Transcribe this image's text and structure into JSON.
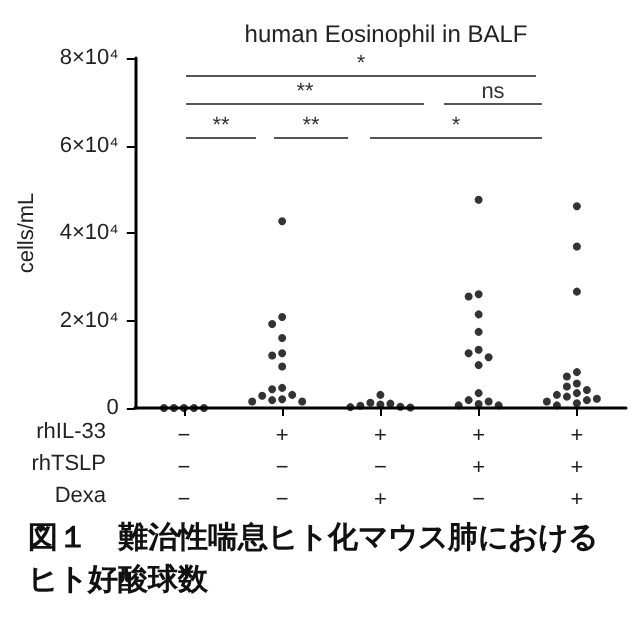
{
  "chart_data": {
    "type": "scatter",
    "title": "human Eosinophil in BALF",
    "ylabel": "cells/mL",
    "categories": [
      "−\n−\n−",
      "+\n−\n−",
      "+\n−\n+",
      "+\n+\n−",
      "+\n+\n+"
    ],
    "series": [
      {
        "color": "#000000",
        "x": [
          "−\n−\n−",
          "−\n−\n−",
          "−\n−\n−",
          "−\n−\n−",
          "−\n−\n−"
        ],
        "values": [
          0,
          0,
          0,
          0,
          0
        ]
      },
      {
        "color": "#000000",
        "x": [
          "+\n−\n−",
          "+\n−\n−",
          "+\n−\n−",
          "+\n−\n−",
          "+\n−\n−",
          "+\n−\n−",
          "+\n−\n−",
          "+\n−\n−",
          "+\n−\n−",
          "+\n−\n−",
          "+\n−\n−",
          "+\n−\n−",
          "+\n−\n−",
          "+\n−\n−",
          "+\n−\n−"
        ],
        "values": [
          42700,
          20800,
          19200,
          16000,
          12500,
          12000,
          9500,
          4600,
          4300,
          3000,
          2800,
          2000,
          1800,
          1500,
          1500
        ]
      },
      {
        "color": "#000000",
        "x": [
          "+\n−\n+",
          "+\n−\n+",
          "+\n−\n+",
          "+\n−\n+",
          "+\n−\n+",
          "+\n−\n+",
          "+\n−\n+",
          "+\n−\n+"
        ],
        "values": [
          3000,
          1200,
          1000,
          800,
          500,
          300,
          200,
          100
        ]
      },
      {
        "color": "#000000",
        "x": [
          "+\n+\n−",
          "+\n+\n−",
          "+\n+\n−",
          "+\n+\n−",
          "+\n+\n−",
          "+\n+\n−",
          "+\n+\n−",
          "+\n+\n−",
          "+\n+\n−",
          "+\n+\n−",
          "+\n+\n−",
          "+\n+\n−",
          "+\n+\n−",
          "+\n+\n−",
          "+\n+\n−"
        ],
        "values": [
          47600,
          26000,
          25500,
          21400,
          17400,
          13300,
          12500,
          11600,
          9800,
          3400,
          1800,
          1500,
          900,
          600,
          600
        ]
      },
      {
        "color": "#000000",
        "x": [
          "+\n+\n+",
          "+\n+\n+",
          "+\n+\n+",
          "+\n+\n+",
          "+\n+\n+",
          "+\n+\n+",
          "+\n+\n+",
          "+\n+\n+",
          "+\n+\n+",
          "+\n+\n+",
          "+\n+\n+",
          "+\n+\n+",
          "+\n+\n+",
          "+\n+\n+",
          "+\n+\n+",
          "+\n+\n+"
        ],
        "values": [
          46100,
          36900,
          26600,
          8200,
          7200,
          5600,
          4900,
          4100,
          3400,
          3000,
          2600,
          2100,
          1800,
          1500,
          1100,
          600
        ]
      }
    ],
    "ylim": [
      0,
      80000
    ],
    "yticks": [
      0,
      {
        "value": 20000,
        "label": "2×10⁴"
      },
      {
        "value": 40000,
        "label": "4×10⁴"
      },
      {
        "value": 60000,
        "label": "6×10⁴"
      },
      {
        "value": 80000,
        "label": "8×10⁴"
      }
    ],
    "marker": "circle",
    "grid": false,
    "annotations": [
      "*",
      "**",
      "ns",
      "**",
      "**",
      "*",
      "rhIL-33",
      "rhTSLP",
      "Dexa",
      "図１　難治性喘息ヒト化マウス肺におけるヒト好酸球数"
    ]
  }
}
